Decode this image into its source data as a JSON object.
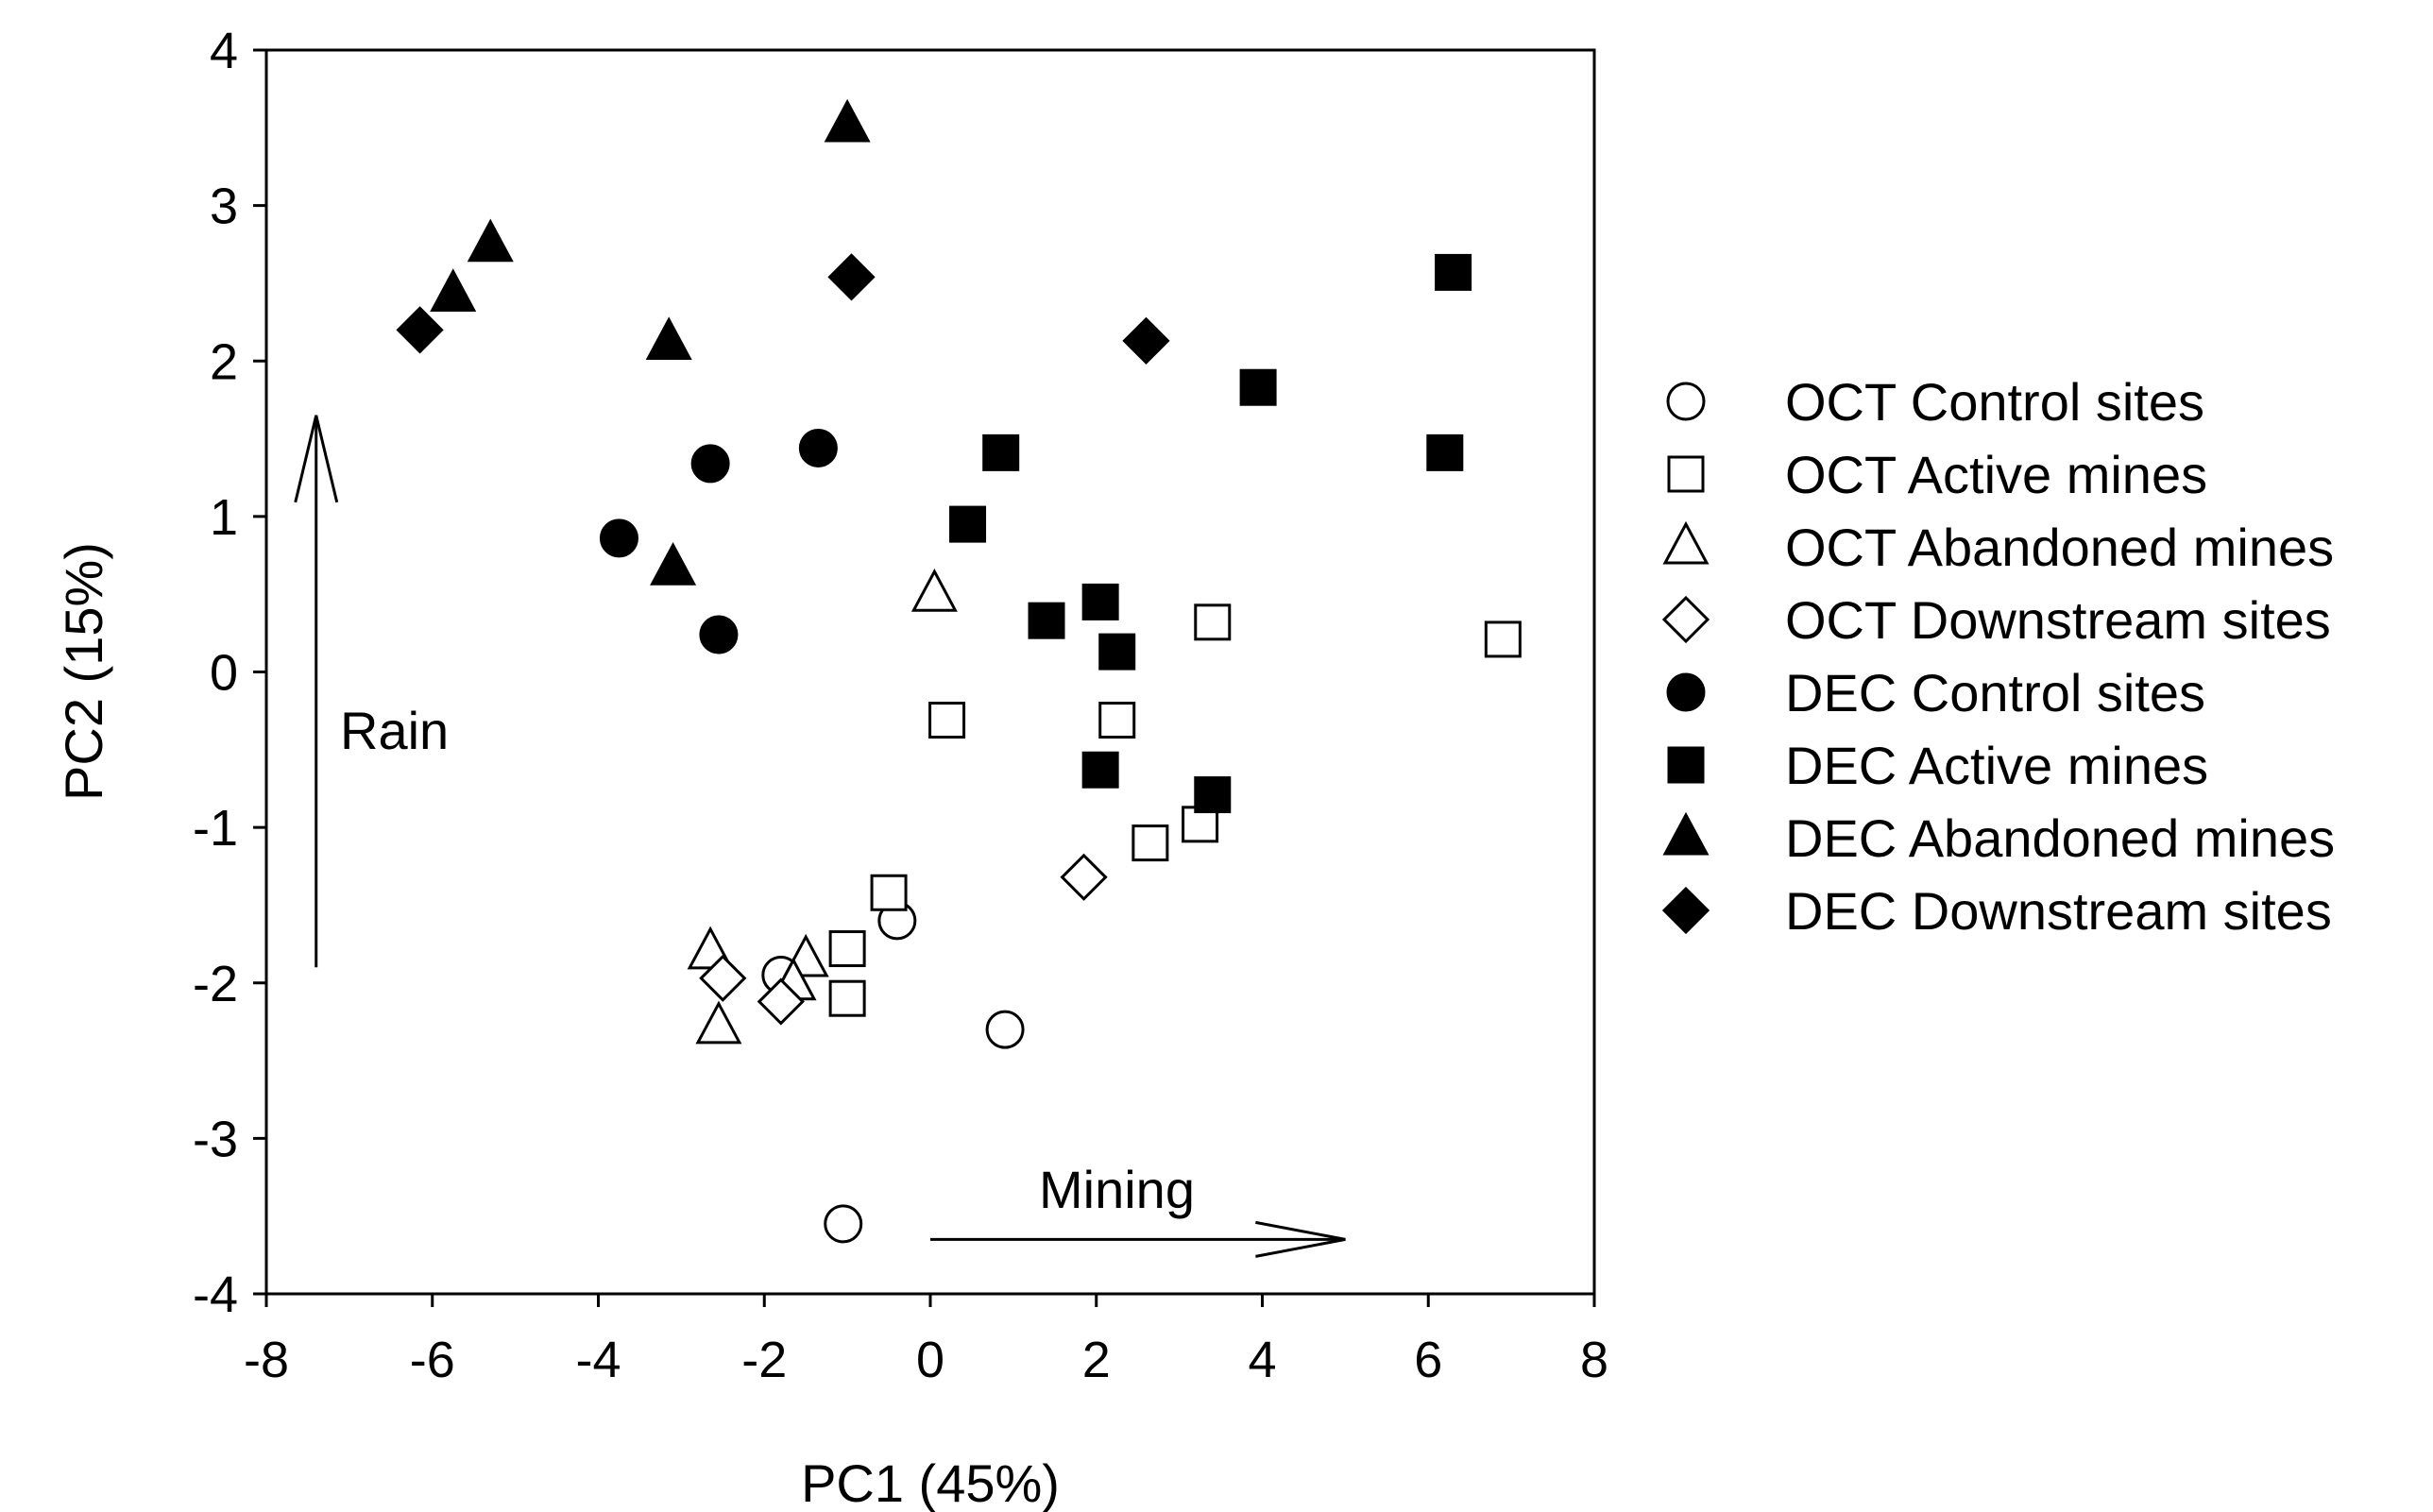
{
  "chart_data": {
    "type": "scatter",
    "title": "",
    "xlabel": "PC1 (45%)",
    "ylabel": "PC2 (15%)",
    "xlim": [
      -8,
      8
    ],
    "ylim": [
      -4,
      4
    ],
    "xticks": [
      "-8",
      "-6",
      "-4",
      "-2",
      "0",
      "2",
      "4",
      "6",
      "8"
    ],
    "yticks": [
      "-4",
      "-3",
      "-2",
      "-1",
      "0",
      "1",
      "2",
      "3",
      "4"
    ],
    "grid": false,
    "legend_position": "right",
    "annotations": [
      {
        "text": "Rain",
        "arrow": "up",
        "arrow_x": -7.4,
        "arrow_from": -1.9,
        "arrow_to": 1.65
      },
      {
        "text": "Mining",
        "arrow": "right",
        "arrow_y": -3.65,
        "arrow_from": 0,
        "arrow_to": 5.0
      }
    ],
    "series": [
      {
        "name": "OCT Control sites",
        "marker": "circle",
        "filled": false,
        "points": [
          [
            -1.8,
            -1.95
          ],
          [
            -0.4,
            -1.6
          ],
          [
            0.9,
            -2.3
          ],
          [
            -1.05,
            -3.55
          ]
        ]
      },
      {
        "name": "OCT Active mines",
        "marker": "square",
        "filled": false,
        "points": [
          [
            -0.5,
            -1.42
          ],
          [
            -1.0,
            -1.78
          ],
          [
            -1.0,
            -2.1
          ],
          [
            0.2,
            -0.31
          ],
          [
            2.25,
            -0.31
          ],
          [
            2.65,
            -1.1
          ],
          [
            3.25,
            -0.98
          ],
          [
            3.4,
            0.32
          ],
          [
            6.9,
            0.21
          ]
        ]
      },
      {
        "name": "OCT Abandoned mines",
        "marker": "triangle",
        "filled": false,
        "points": [
          [
            0.05,
            0.5
          ],
          [
            -2.65,
            -1.8
          ],
          [
            -1.5,
            -1.85
          ],
          [
            -2.55,
            -2.28
          ],
          [
            -1.65,
            -2.0
          ]
        ]
      },
      {
        "name": "OCT Downstream sites",
        "marker": "diamond",
        "filled": false,
        "points": [
          [
            -2.5,
            -1.97
          ],
          [
            -1.8,
            -2.12
          ],
          [
            1.85,
            -1.32
          ]
        ]
      },
      {
        "name": "DEC Control sites",
        "marker": "circle",
        "filled": true,
        "points": [
          [
            -2.65,
            1.34
          ],
          [
            -1.35,
            1.44
          ],
          [
            -3.75,
            0.86
          ],
          [
            -2.55,
            0.24
          ]
        ]
      },
      {
        "name": "DEC Active mines",
        "marker": "square",
        "filled": true,
        "points": [
          [
            0.85,
            1.41
          ],
          [
            0.45,
            0.95
          ],
          [
            1.4,
            0.33
          ],
          [
            2.05,
            0.45
          ],
          [
            2.25,
            0.13
          ],
          [
            2.05,
            -0.63
          ],
          [
            3.4,
            -0.79
          ],
          [
            3.95,
            1.83
          ],
          [
            6.3,
            2.57
          ],
          [
            6.2,
            1.41
          ]
        ]
      },
      {
        "name": "DEC Abandoned mines",
        "marker": "triangle",
        "filled": true,
        "points": [
          [
            -1.0,
            3.52
          ],
          [
            -5.3,
            2.75
          ],
          [
            -5.75,
            2.43
          ],
          [
            -3.15,
            2.12
          ],
          [
            -3.1,
            0.67
          ]
        ]
      },
      {
        "name": "DEC Downstream sites",
        "marker": "diamond",
        "filled": true,
        "points": [
          [
            -6.15,
            2.2
          ],
          [
            -0.95,
            2.54
          ],
          [
            2.6,
            2.13
          ]
        ]
      }
    ]
  }
}
